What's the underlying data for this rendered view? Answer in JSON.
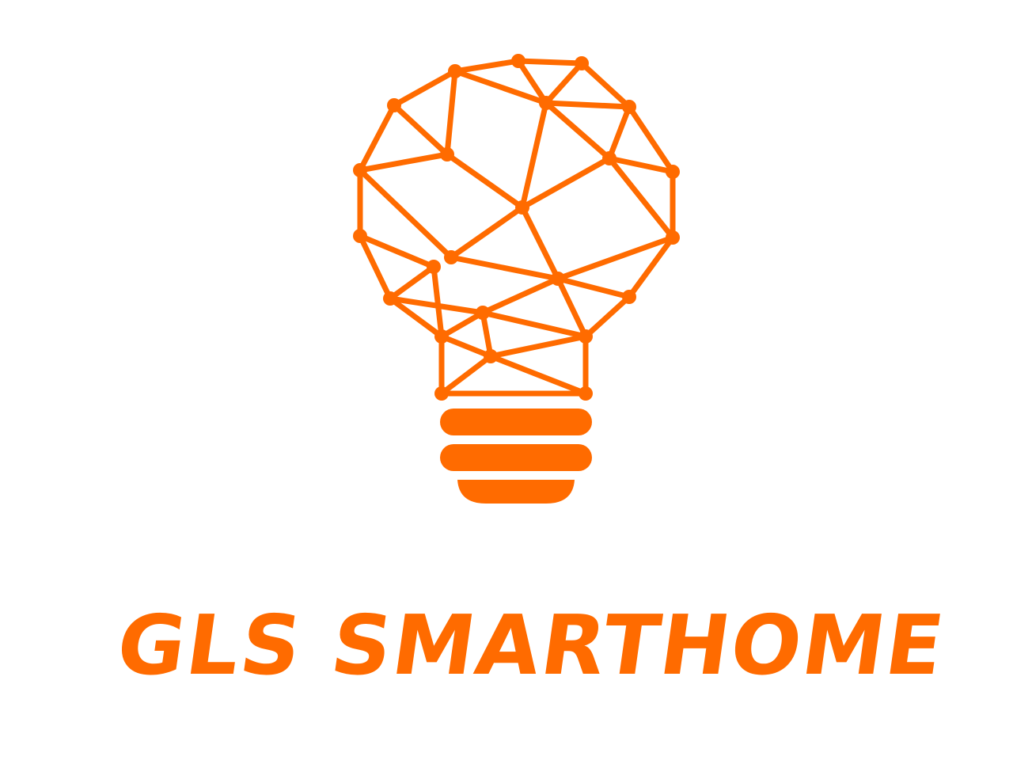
{
  "brand": {
    "name": "GLS SMARTHOME",
    "color": "#ff6b00",
    "background": "#ffffff"
  },
  "logo": {
    "icon": "network-lightbulb-icon"
  }
}
